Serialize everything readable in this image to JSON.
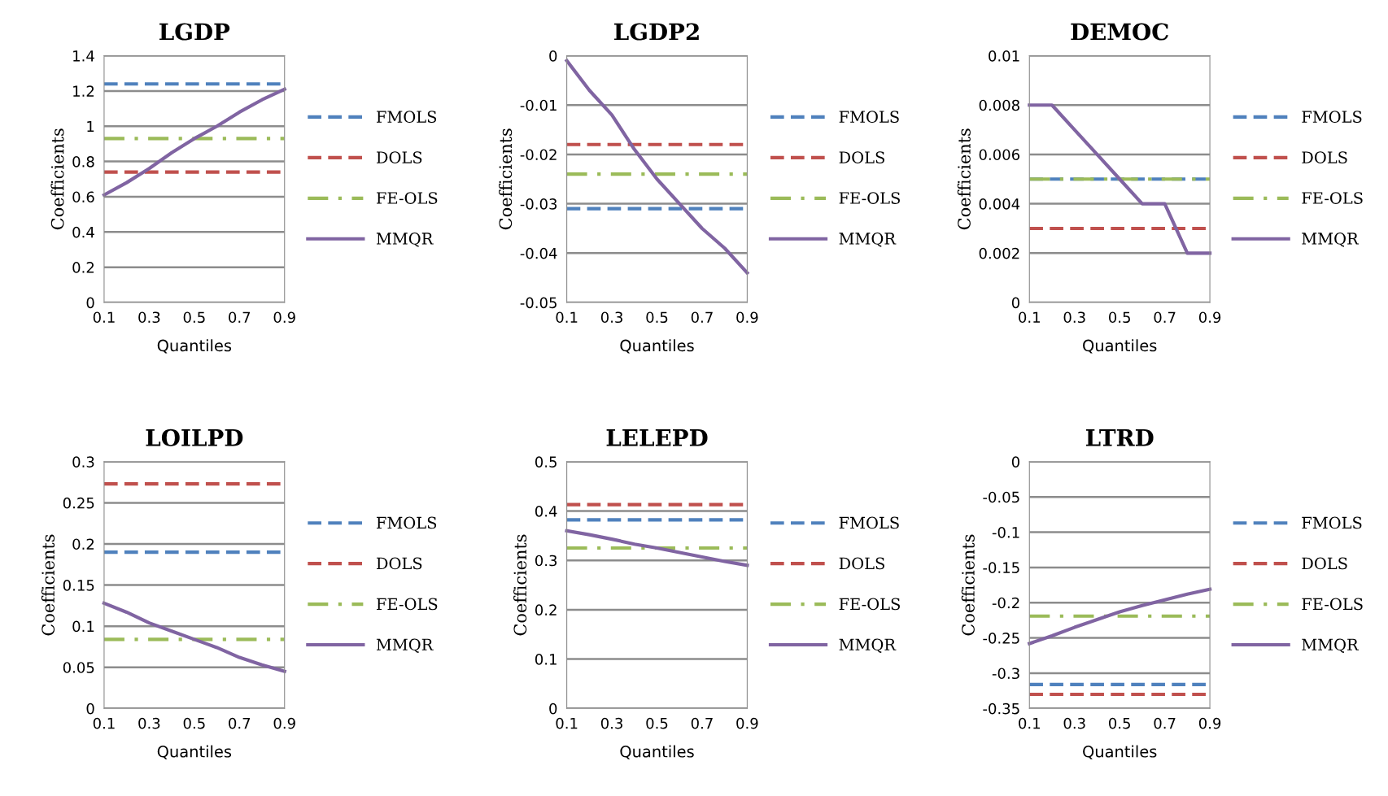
{
  "chart_data": [
    {
      "type": "line",
      "title": "LGDP",
      "xlabel": "Quantiles",
      "ylabel": "Coefficients",
      "x": [
        0.1,
        0.2,
        0.3,
        0.4,
        0.5,
        0.6,
        0.7,
        0.8,
        0.9
      ],
      "xlim": [
        0.1,
        0.9
      ],
      "xticks": [
        0.1,
        0.3,
        0.5,
        0.7,
        0.9
      ],
      "ylim": [
        0,
        1.4
      ],
      "yticks": [
        0,
        0.2,
        0.4,
        0.6,
        0.8,
        1,
        1.2,
        1.4
      ],
      "grid": "y",
      "legend": "right",
      "series": [
        {
          "name": "FMOLS",
          "color": "#4f81bd",
          "line_style": "dashed",
          "values": [
            1.24,
            1.24,
            1.24,
            1.24,
            1.24,
            1.24,
            1.24,
            1.24,
            1.24
          ]
        },
        {
          "name": "DOLS",
          "color": "#c0504d",
          "line_style": "dashed",
          "values": [
            0.74,
            0.74,
            0.74,
            0.74,
            0.74,
            0.74,
            0.74,
            0.74,
            0.74
          ]
        },
        {
          "name": "FE-OLS",
          "color": "#9bbb59",
          "line_style": "dashdot",
          "values": [
            0.93,
            0.93,
            0.93,
            0.93,
            0.93,
            0.93,
            0.93,
            0.93,
            0.93
          ]
        },
        {
          "name": "MMQR",
          "color": "#8064a2",
          "line_style": "solid",
          "values": [
            0.61,
            0.68,
            0.76,
            0.85,
            0.93,
            1.0,
            1.08,
            1.15,
            1.21
          ]
        }
      ]
    },
    {
      "type": "line",
      "title": "LGDP2",
      "xlabel": "Quantiles",
      "ylabel": "Coefficients",
      "x": [
        0.1,
        0.2,
        0.3,
        0.4,
        0.5,
        0.6,
        0.7,
        0.8,
        0.9
      ],
      "xlim": [
        0.1,
        0.9
      ],
      "xticks": [
        0.1,
        0.3,
        0.5,
        0.7,
        0.9
      ],
      "ylim": [
        -0.05,
        0
      ],
      "yticks": [
        -0.05,
        -0.04,
        -0.03,
        -0.02,
        -0.01,
        0
      ],
      "grid": "y",
      "legend": "right",
      "series": [
        {
          "name": "FMOLS",
          "color": "#4f81bd",
          "line_style": "dashed",
          "values": [
            -0.031,
            -0.031,
            -0.031,
            -0.031,
            -0.031,
            -0.031,
            -0.031,
            -0.031,
            -0.031
          ]
        },
        {
          "name": "DOLS",
          "color": "#c0504d",
          "line_style": "dashed",
          "values": [
            -0.018,
            -0.018,
            -0.018,
            -0.018,
            -0.018,
            -0.018,
            -0.018,
            -0.018,
            -0.018
          ]
        },
        {
          "name": "FE-OLS",
          "color": "#9bbb59",
          "line_style": "dashdot",
          "values": [
            -0.024,
            -0.024,
            -0.024,
            -0.024,
            -0.024,
            -0.024,
            -0.024,
            -0.024,
            -0.024
          ]
        },
        {
          "name": "MMQR",
          "color": "#8064a2",
          "line_style": "solid",
          "values": [
            -0.001,
            -0.007,
            -0.012,
            -0.019,
            -0.025,
            -0.03,
            -0.035,
            -0.039,
            -0.044
          ]
        }
      ]
    },
    {
      "type": "line",
      "title": "DEMOC",
      "xlabel": "Quantiles",
      "ylabel": "Coefficients",
      "x": [
        0.1,
        0.2,
        0.3,
        0.4,
        0.5,
        0.6,
        0.7,
        0.8,
        0.9
      ],
      "xlim": [
        0.1,
        0.9
      ],
      "xticks": [
        0.1,
        0.3,
        0.5,
        0.7,
        0.9
      ],
      "ylim": [
        0,
        0.01
      ],
      "yticks": [
        0,
        0.002,
        0.004,
        0.006,
        0.008,
        0.01
      ],
      "grid": "y",
      "legend": "right",
      "series": [
        {
          "name": "FMOLS",
          "color": "#4f81bd",
          "line_style": "dashed",
          "values": [
            0.005,
            0.005,
            0.005,
            0.005,
            0.005,
            0.005,
            0.005,
            0.005,
            0.005
          ]
        },
        {
          "name": "DOLS",
          "color": "#c0504d",
          "line_style": "dashed",
          "values": [
            0.003,
            0.003,
            0.003,
            0.003,
            0.003,
            0.003,
            0.003,
            0.003,
            0.003
          ]
        },
        {
          "name": "FE-OLS",
          "color": "#9bbb59",
          "line_style": "dashdot",
          "values": [
            0.005,
            0.005,
            0.005,
            0.005,
            0.005,
            0.005,
            0.005,
            0.005,
            0.005
          ]
        },
        {
          "name": "MMQR",
          "color": "#8064a2",
          "line_style": "solid",
          "values": [
            0.008,
            0.008,
            0.007,
            0.006,
            0.005,
            0.004,
            0.004,
            0.002,
            0.002
          ]
        }
      ]
    },
    {
      "type": "line",
      "title": "LOILPD",
      "xlabel": "Quantiles",
      "ylabel": "Coefficients",
      "x": [
        0.1,
        0.2,
        0.3,
        0.4,
        0.5,
        0.6,
        0.7,
        0.8,
        0.9
      ],
      "xlim": [
        0.1,
        0.9
      ],
      "xticks": [
        0.1,
        0.3,
        0.5,
        0.7,
        0.9
      ],
      "ylim": [
        0,
        0.3
      ],
      "yticks": [
        0,
        0.05,
        0.1,
        0.15,
        0.2,
        0.25,
        0.3
      ],
      "grid": "y",
      "legend": "right",
      "series": [
        {
          "name": "FMOLS",
          "color": "#4f81bd",
          "line_style": "dashed",
          "values": [
            0.19,
            0.19,
            0.19,
            0.19,
            0.19,
            0.19,
            0.19,
            0.19,
            0.19
          ]
        },
        {
          "name": "DOLS",
          "color": "#c0504d",
          "line_style": "dashed",
          "values": [
            0.273,
            0.273,
            0.273,
            0.273,
            0.273,
            0.273,
            0.273,
            0.273,
            0.273
          ]
        },
        {
          "name": "FE-OLS",
          "color": "#9bbb59",
          "line_style": "dashdot",
          "values": [
            0.084,
            0.084,
            0.084,
            0.084,
            0.084,
            0.084,
            0.084,
            0.084,
            0.084
          ]
        },
        {
          "name": "MMQR",
          "color": "#8064a2",
          "line_style": "solid",
          "values": [
            0.128,
            0.117,
            0.104,
            0.094,
            0.084,
            0.074,
            0.062,
            0.053,
            0.045
          ]
        }
      ]
    },
    {
      "type": "line",
      "title": "LELEPD",
      "xlabel": "Quantiles",
      "ylabel": "Coefficients",
      "x": [
        0.1,
        0.2,
        0.3,
        0.4,
        0.5,
        0.6,
        0.7,
        0.8,
        0.9
      ],
      "xlim": [
        0.1,
        0.9
      ],
      "xticks": [
        0.1,
        0.3,
        0.5,
        0.7,
        0.9
      ],
      "ylim": [
        0,
        0.5
      ],
      "yticks": [
        0,
        0.1,
        0.2,
        0.3,
        0.4,
        0.5
      ],
      "grid": "y",
      "legend": "right",
      "series": [
        {
          "name": "FMOLS",
          "color": "#4f81bd",
          "line_style": "dashed",
          "values": [
            0.382,
            0.382,
            0.382,
            0.382,
            0.382,
            0.382,
            0.382,
            0.382,
            0.382
          ]
        },
        {
          "name": "DOLS",
          "color": "#c0504d",
          "line_style": "dashed",
          "values": [
            0.413,
            0.413,
            0.413,
            0.413,
            0.413,
            0.413,
            0.413,
            0.413,
            0.413
          ]
        },
        {
          "name": "FE-OLS",
          "color": "#9bbb59",
          "line_style": "dashdot",
          "values": [
            0.325,
            0.325,
            0.325,
            0.325,
            0.325,
            0.325,
            0.325,
            0.325,
            0.325
          ]
        },
        {
          "name": "MMQR",
          "color": "#8064a2",
          "line_style": "solid",
          "values": [
            0.36,
            0.352,
            0.343,
            0.333,
            0.325,
            0.316,
            0.307,
            0.298,
            0.29
          ]
        }
      ]
    },
    {
      "type": "line",
      "title": "LTRD",
      "xlabel": "Quantiles",
      "ylabel": "Coefficients",
      "x": [
        0.1,
        0.2,
        0.3,
        0.4,
        0.5,
        0.6,
        0.7,
        0.8,
        0.9
      ],
      "xlim": [
        0.1,
        0.9
      ],
      "xticks": [
        0.1,
        0.3,
        0.5,
        0.7,
        0.9
      ],
      "ylim": [
        -0.35,
        0
      ],
      "yticks": [
        -0.35,
        -0.3,
        -0.25,
        -0.2,
        -0.15,
        -0.1,
        -0.05,
        0
      ],
      "grid": "y",
      "legend": "right",
      "series": [
        {
          "name": "FMOLS",
          "color": "#4f81bd",
          "line_style": "dashed",
          "values": [
            -0.316,
            -0.316,
            -0.316,
            -0.316,
            -0.316,
            -0.316,
            -0.316,
            -0.316,
            -0.316
          ]
        },
        {
          "name": "DOLS",
          "color": "#c0504d",
          "line_style": "dashed",
          "values": [
            -0.33,
            -0.33,
            -0.33,
            -0.33,
            -0.33,
            -0.33,
            -0.33,
            -0.33,
            -0.33
          ]
        },
        {
          "name": "FE-OLS",
          "color": "#9bbb59",
          "line_style": "dashdot",
          "values": [
            -0.219,
            -0.219,
            -0.219,
            -0.219,
            -0.219,
            -0.219,
            -0.219,
            -0.219,
            -0.219
          ]
        },
        {
          "name": "MMQR",
          "color": "#8064a2",
          "line_style": "solid",
          "values": [
            -0.258,
            -0.247,
            -0.235,
            -0.224,
            -0.213,
            -0.204,
            -0.196,
            -0.188,
            -0.181
          ]
        }
      ]
    }
  ]
}
